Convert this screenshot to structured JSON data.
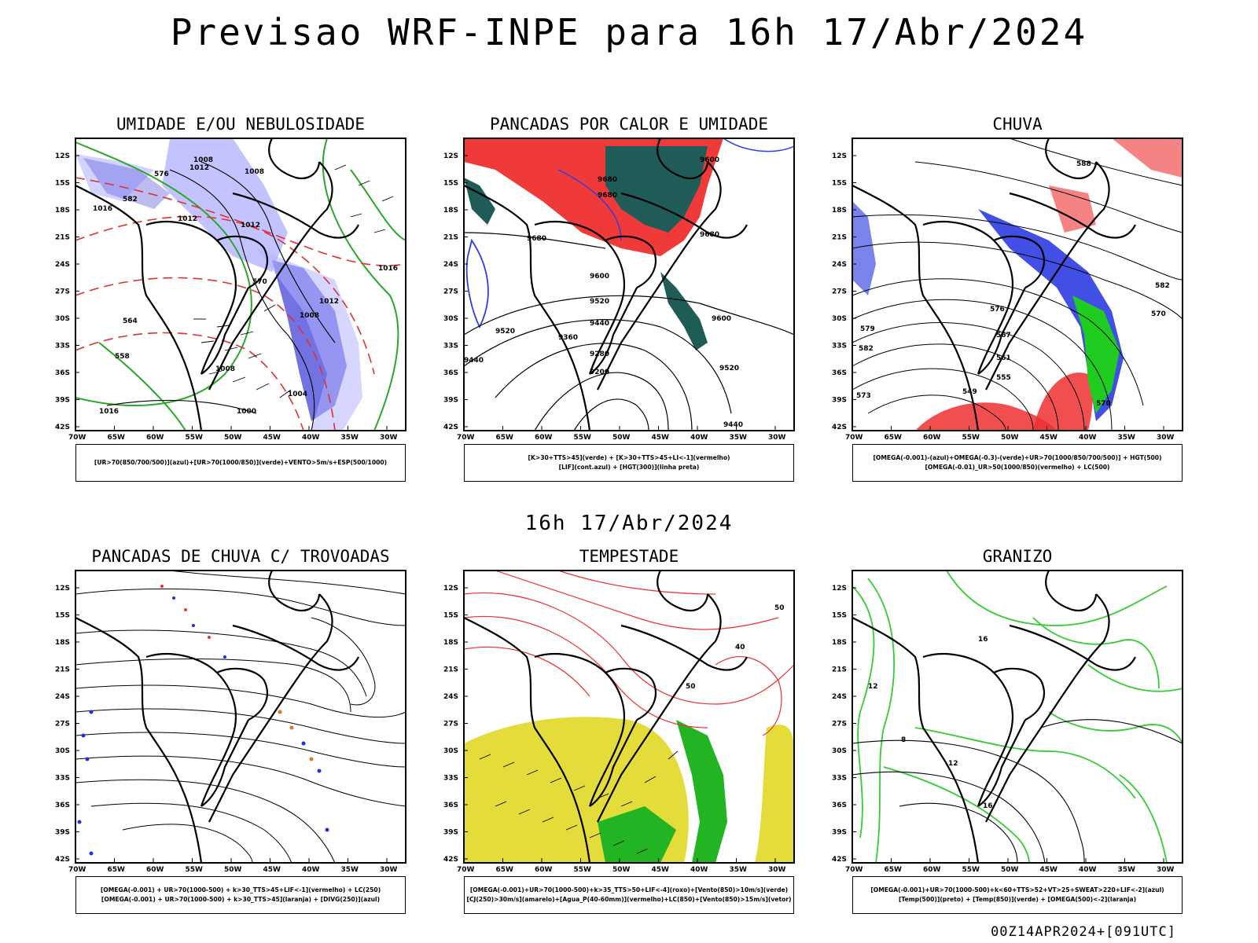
{
  "header": {
    "title": "Previsao WRF-INPE  para 16h 17/Abr/2024",
    "mid_date": "16h 17/Abr/2024",
    "footer": "00Z14APR2024+[091UTC]"
  },
  "axes": {
    "lat_labels": [
      "12S",
      "15S",
      "18S",
      "21S",
      "24S",
      "27S",
      "30S",
      "33S",
      "36S",
      "39S",
      "42S"
    ],
    "lon_labels": [
      "70W",
      "65W",
      "60W",
      "55W",
      "50W",
      "45W",
      "40W",
      "35W",
      "30W"
    ]
  },
  "panels": [
    {
      "title": "UMIDADE E/OU NEBULOSIDADE",
      "legend": [
        "[UR>70(850/700/500)](azul)+[UR>70(1000/850)](verde)+VENTO>5m/s+ESP(500/1000)"
      ],
      "labels": [
        "1012",
        "1008",
        "1008",
        "1012",
        "1016",
        "1012",
        "1012",
        "1008",
        "1004",
        "1000",
        "1016",
        "1016",
        "1008",
        "570",
        "576",
        "582",
        "564",
        "558"
      ]
    },
    {
      "title": "PANCADAS POR CALOR E UMIDADE",
      "legend": [
        "[K>30+TTS>45](verde) + [K>30+TTS>45+LI<-1](vermelho)",
        "[LIF](cont.azul) + [HGT(300)](linha preta)"
      ],
      "labels": [
        "9680",
        "9680",
        "9680",
        "9600",
        "9680",
        "9600",
        "9520",
        "9440",
        "9360",
        "9280",
        "9200",
        "9600",
        "9520",
        "9520",
        "9440",
        "9440"
      ]
    },
    {
      "title": "CHUVA",
      "legend": [
        "[OMEGA(-0.001)-(azul)+OMEGA(-0.3)-(verde)+UR>70(1000/850/700/500)] + HGT(500)",
        "[OMEGA(-0.01)_UR>50(1000/850)(vermelho) + LC(500)"
      ],
      "labels": [
        "588",
        "582",
        "576",
        "570",
        "567",
        "561",
        "555",
        "549",
        "579",
        "573",
        "570",
        "582"
      ]
    },
    {
      "title": "PANCADAS DE CHUVA C/ TROVOADAS",
      "legend": [
        "[OMEGA(-0.001) + UR>70(1000-500) + k>30_TTS>45+LIF<-1](vermelho) + LC(250)",
        "[OMEGA(-0.001) + UR>70(1000-500) + k>30_TTS>45](laranja) + [DIVG(250)](azul)"
      ],
      "labels": []
    },
    {
      "title": "TEMPESTADE",
      "legend": [
        "[OMEGA(-0.001)+UR>70(1000-500)+k>35_TTS>50+LIF<-4](roxo)+[Vento(850)>10m/s](verde)",
        "[CJ(250)>30m/s](amarelo)+[Agua_P(40-60mm)](vermelho)+LC(850)+[Vento(850)>15m/s](vetor)"
      ],
      "labels": [
        "40",
        "50",
        "50"
      ]
    },
    {
      "title": "GRANIZO",
      "legend": [
        "[OMEGA(-0.001)+UR>70(1000-500)+k<60+TTS>52+VT>25+SWEAT>220+LIF<-2](azul)",
        "[Temp(500)](preto) + [Temp(850)](verde) + [OMEGA(500)<-2](laranja)"
      ],
      "labels": [
        "12",
        "16",
        "8",
        "12",
        "16"
      ]
    }
  ],
  "colors": {
    "humidity_high": "#6a6ae0",
    "humidity_mid": "#b4b4ff",
    "humidity_low": "#2aa82a",
    "thickness": "#e03030",
    "heat_red": "#f03a3a",
    "heat_teal": "#1f5c58",
    "lif_blue": "#2e3ce8",
    "rain_red": "#ee3030",
    "rain_green": "#1fcc1f",
    "rain_blue": "#2030e0",
    "storm_orange": "#e07820",
    "jet_yellow": "#e4dc3a",
    "storm_green": "#22b422",
    "temp850_green": "#33cc33"
  }
}
